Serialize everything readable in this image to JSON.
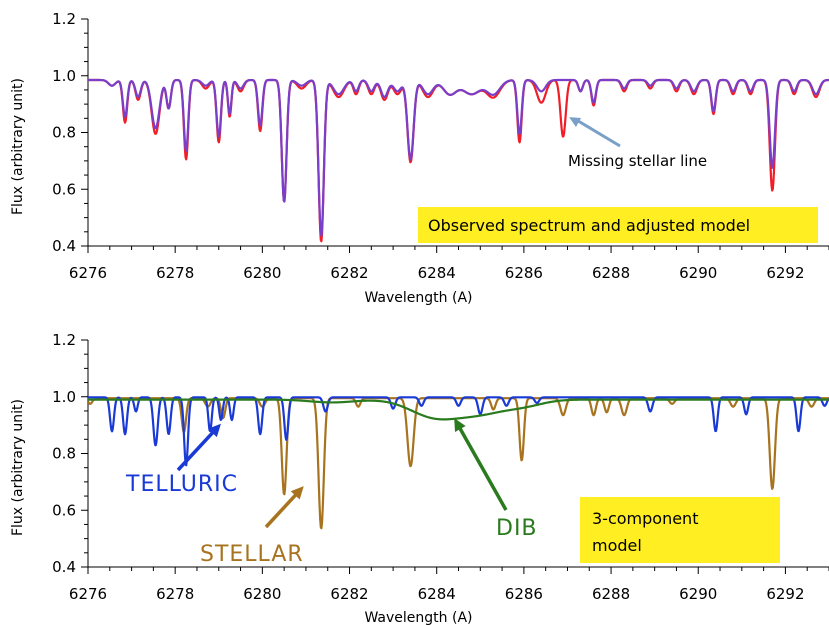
{
  "colors": {
    "observed": "#f01e28",
    "model": "#7a3fc8",
    "telluric": "#1a3ad6",
    "stellar": "#a8731f",
    "dib": "#2a7a1e",
    "annotation_arrow": "#7aa0c8",
    "box": "#ffee22"
  },
  "chart_data": [
    {
      "type": "line",
      "xlabel": "Wavelength (A)",
      "ylabel": "Flux (arbitrary unit)",
      "xlim": [
        6276,
        6293
      ],
      "ylim": [
        0.4,
        1.2
      ],
      "xticks": [
        6276,
        6278,
        6280,
        6282,
        6284,
        6286,
        6288,
        6290,
        6292
      ],
      "xtick_labels": [
        "6276",
        "6278",
        "6280",
        "6282",
        "6284",
        "6286",
        "6288",
        "6290",
        "6292"
      ],
      "yticks": [
        0.4,
        0.6,
        0.8,
        1.0,
        1.2
      ],
      "ytick_labels": [
        "0.4",
        "0.6",
        "0.8",
        "1.0",
        "1.2"
      ],
      "series": [
        {
          "key": "observed",
          "continuum": 0.985,
          "lines": [
            [
              6276.55,
              0.02,
              0.08
            ],
            [
              6276.85,
              0.15,
              0.05
            ],
            [
              6277.15,
              0.07,
              0.06
            ],
            [
              6277.55,
              0.19,
              0.09
            ],
            [
              6277.85,
              0.1,
              0.05
            ],
            [
              6278.25,
              0.28,
              0.05
            ],
            [
              6278.7,
              0.03,
              0.08
            ],
            [
              6279.0,
              0.22,
              0.05
            ],
            [
              6279.25,
              0.13,
              0.04
            ],
            [
              6279.5,
              0.04,
              0.07
            ],
            [
              6279.95,
              0.18,
              0.05
            ],
            [
              6280.5,
              0.43,
              0.055
            ],
            [
              6280.9,
              0.03,
              0.1
            ],
            [
              6281.35,
              0.57,
              0.06
            ],
            [
              6281.75,
              0.06,
              0.12
            ],
            [
              6282.15,
              0.05,
              0.06
            ],
            [
              6282.5,
              0.05,
              0.07
            ],
            [
              6282.8,
              0.07,
              0.08
            ],
            [
              6283.1,
              0.05,
              0.09
            ],
            [
              6283.4,
              0.29,
              0.07
            ],
            [
              6283.8,
              0.06,
              0.12
            ],
            [
              6284.3,
              0.05,
              0.15
            ],
            [
              6284.8,
              0.05,
              0.2
            ],
            [
              6285.3,
              0.06,
              0.15
            ],
            [
              6285.9,
              0.22,
              0.05
            ],
            [
              6286.4,
              0.08,
              0.1
            ],
            [
              6286.9,
              0.2,
              0.06
            ],
            [
              6287.3,
              0.04,
              0.05
            ],
            [
              6287.6,
              0.09,
              0.05
            ],
            [
              6288.3,
              0.04,
              0.06
            ],
            [
              6288.9,
              0.03,
              0.06
            ],
            [
              6289.5,
              0.04,
              0.06
            ],
            [
              6289.9,
              0.05,
              0.07
            ],
            [
              6290.35,
              0.12,
              0.05
            ],
            [
              6290.8,
              0.05,
              0.06
            ],
            [
              6291.2,
              0.05,
              0.06
            ],
            [
              6291.7,
              0.39,
              0.06
            ],
            [
              6292.2,
              0.05,
              0.06
            ],
            [
              6292.7,
              0.06,
              0.08
            ]
          ]
        },
        {
          "key": "model",
          "continuum": 0.985,
          "lines": [
            [
              6276.55,
              0.02,
              0.08
            ],
            [
              6276.85,
              0.13,
              0.05
            ],
            [
              6277.15,
              0.06,
              0.06
            ],
            [
              6277.55,
              0.17,
              0.09
            ],
            [
              6277.85,
              0.1,
              0.05
            ],
            [
              6278.25,
              0.25,
              0.05
            ],
            [
              6278.7,
              0.02,
              0.08
            ],
            [
              6279.0,
              0.2,
              0.05
            ],
            [
              6279.25,
              0.12,
              0.04
            ],
            [
              6279.5,
              0.03,
              0.07
            ],
            [
              6279.95,
              0.16,
              0.05
            ],
            [
              6280.5,
              0.43,
              0.055
            ],
            [
              6280.9,
              0.02,
              0.1
            ],
            [
              6281.35,
              0.55,
              0.06
            ],
            [
              6281.75,
              0.05,
              0.12
            ],
            [
              6282.15,
              0.04,
              0.06
            ],
            [
              6282.5,
              0.04,
              0.07
            ],
            [
              6282.8,
              0.06,
              0.08
            ],
            [
              6283.1,
              0.04,
              0.09
            ],
            [
              6283.4,
              0.28,
              0.07
            ],
            [
              6283.8,
              0.05,
              0.12
            ],
            [
              6284.3,
              0.05,
              0.15
            ],
            [
              6284.8,
              0.05,
              0.2
            ],
            [
              6285.3,
              0.05,
              0.15
            ],
            [
              6285.9,
              0.19,
              0.05
            ],
            [
              6286.4,
              0.04,
              0.1
            ],
            [
              6287.3,
              0.04,
              0.05
            ],
            [
              6287.6,
              0.08,
              0.05
            ],
            [
              6288.3,
              0.03,
              0.06
            ],
            [
              6288.9,
              0.02,
              0.06
            ],
            [
              6289.5,
              0.03,
              0.06
            ],
            [
              6289.9,
              0.04,
              0.07
            ],
            [
              6290.35,
              0.11,
              0.05
            ],
            [
              6290.8,
              0.04,
              0.06
            ],
            [
              6291.2,
              0.04,
              0.06
            ],
            [
              6291.7,
              0.31,
              0.06
            ],
            [
              6292.2,
              0.04,
              0.06
            ],
            [
              6292.7,
              0.05,
              0.08
            ]
          ]
        }
      ],
      "annotations": [
        {
          "text": "Missing stellar line",
          "arrow_to": [
            6286.9,
            0.84
          ]
        }
      ],
      "legend_box": "Observed spectrum and adjusted model"
    },
    {
      "type": "line",
      "xlabel": "Wavelength (A)",
      "ylabel": "Flux (arbitrary unit)",
      "xlim": [
        6276,
        6293
      ],
      "ylim": [
        0.4,
        1.2
      ],
      "xticks": [
        6276,
        6278,
        6280,
        6282,
        6284,
        6286,
        6288,
        6290,
        6292
      ],
      "xtick_labels": [
        "6276",
        "6278",
        "6280",
        "6282",
        "6284",
        "6286",
        "6288",
        "6290",
        "6292"
      ],
      "yticks": [
        0.4,
        0.6,
        0.8,
        1.0,
        1.2
      ],
      "ytick_labels": [
        "0.4",
        "0.6",
        "0.8",
        "1.0",
        "1.2"
      ],
      "series": [
        {
          "key": "stellar",
          "continuum": 0.995,
          "lines": [
            [
              6276.05,
              0.02,
              0.05
            ],
            [
              6278.2,
              0.12,
              0.05
            ],
            [
              6278.75,
              0.03,
              0.06
            ],
            [
              6279.1,
              0.07,
              0.05
            ],
            [
              6280.0,
              0.03,
              0.06
            ],
            [
              6280.5,
              0.34,
              0.055
            ],
            [
              6281.35,
              0.46,
              0.06
            ],
            [
              6282.2,
              0.03,
              0.05
            ],
            [
              6283.4,
              0.24,
              0.07
            ],
            [
              6285.3,
              0.04,
              0.05
            ],
            [
              6285.95,
              0.22,
              0.05
            ],
            [
              6286.9,
              0.06,
              0.06
            ],
            [
              6287.6,
              0.06,
              0.05
            ],
            [
              6287.9,
              0.05,
              0.05
            ],
            [
              6288.3,
              0.06,
              0.06
            ],
            [
              6289.4,
              0.02,
              0.06
            ],
            [
              6290.8,
              0.03,
              0.06
            ],
            [
              6291.7,
              0.32,
              0.06
            ],
            [
              6292.6,
              0.03,
              0.06
            ]
          ]
        },
        {
          "key": "telluric",
          "continuum": 0.998,
          "lines": [
            [
              6276.55,
              0.12,
              0.045
            ],
            [
              6276.85,
              0.13,
              0.045
            ],
            [
              6277.1,
              0.05,
              0.04
            ],
            [
              6277.55,
              0.17,
              0.05
            ],
            [
              6277.85,
              0.13,
              0.045
            ],
            [
              6278.25,
              0.24,
              0.045
            ],
            [
              6278.8,
              0.12,
              0.04
            ],
            [
              6279.05,
              0.08,
              0.04
            ],
            [
              6279.3,
              0.08,
              0.04
            ],
            [
              6279.95,
              0.13,
              0.045
            ],
            [
              6280.55,
              0.15,
              0.045
            ],
            [
              6281.45,
              0.05,
              0.05
            ],
            [
              6283.0,
              0.04,
              0.05
            ],
            [
              6283.65,
              0.03,
              0.05
            ],
            [
              6284.5,
              0.03,
              0.05
            ],
            [
              6285.0,
              0.06,
              0.05
            ],
            [
              6285.6,
              0.03,
              0.05
            ],
            [
              6286.3,
              0.02,
              0.05
            ],
            [
              6288.9,
              0.05,
              0.05
            ],
            [
              6290.4,
              0.12,
              0.045
            ],
            [
              6291.1,
              0.06,
              0.045
            ],
            [
              6292.3,
              0.12,
              0.045
            ],
            [
              6292.9,
              0.03,
              0.05
            ]
          ]
        },
        {
          "key": "dib",
          "continuum": 0.99,
          "lines": [
            [
              6283.95,
              0.06,
              0.55
            ],
            [
              6285.0,
              0.045,
              0.55
            ],
            [
              6286.0,
              0.02,
              0.45
            ],
            [
              6281.6,
              0.01,
              0.5
            ]
          ]
        }
      ],
      "labels": [
        {
          "key": "telluric",
          "text": "TELLURIC",
          "arrow_to": [
            6279.05,
            0.905
          ]
        },
        {
          "key": "stellar",
          "text": "STELLAR",
          "arrow_to": [
            6280.95,
            0.685
          ]
        },
        {
          "key": "dib",
          "text": "DIB",
          "arrow_to": [
            6284.4,
            0.925
          ]
        }
      ],
      "legend_box": [
        "3-component",
        "model"
      ]
    }
  ]
}
